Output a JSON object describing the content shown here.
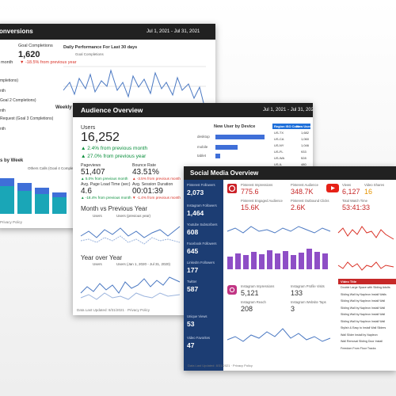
{
  "conversions": {
    "title": "onversions",
    "date": "Jul 1, 2021 - Jul 31, 2021",
    "goal_label": "Goal Completions",
    "goal_value": "1,620",
    "month": "month",
    "goal_change": "▼ -18.5% from previous year",
    "chart_title": "Daily Performance For Last 30 days",
    "chart_legend": "Goal Completions",
    "side": [
      "mpletions)",
      "nth",
      "Goal 2 Completions)",
      "nth",
      "Request (Goal 3 Completions)",
      "nth"
    ],
    "weekly": "Weekly",
    "by_week": "s by Week",
    "legend": "Others Calls (Goal 4 Completions)",
    "footer": "Privacy Policy"
  },
  "audience": {
    "title": "Audience Overview",
    "date": "Jul 1, 2021 - Jul 31, 2021",
    "users_label": "Users",
    "users": "16,252",
    "users_month": "▲ 2.4% from previous month",
    "users_year": "▲ 27.0% from previous year",
    "metrics": [
      {
        "label": "Pageviews",
        "value": "51,407",
        "change": "▲ 5.0% from previous month"
      },
      {
        "label": "Bounce Rate",
        "value": "43.51%",
        "change": "▲ -3.5% from previous month"
      },
      {
        "label": "Avg. Page Load Time (sec)",
        "value": "4.6",
        "change": "▲ -18.4% from previous month"
      },
      {
        "label": "Avg. Session Duration",
        "value": "00:01:39",
        "change": "▼ -1.4% from previous month"
      }
    ],
    "mvp_title": "Month vs Previous Year",
    "mvp_legend": [
      "Users",
      "Users (previous year)"
    ],
    "yoy_title": "Year over Year",
    "yoy_legend": [
      "Users",
      "Users (Jan 1, 2020 - Jul 31, 2020)"
    ],
    "device_title": "New User by Device",
    "devices": [
      "desktop",
      "mobile",
      "tablet"
    ],
    "table": {
      "header": [
        "Region ISO Code",
        "New Users"
      ],
      "rows": [
        [
          "US-TX",
          "1,682"
        ],
        [
          "US-CA",
          "1,060"
        ],
        [
          "US-NY",
          "1,046"
        ],
        [
          "US-FL",
          "933"
        ],
        [
          "US-WA",
          "528"
        ],
        [
          "US-IL",
          "480"
        ]
      ]
    },
    "footer": "Data Last Updated: 8/31/2021 · Privacy Policy"
  },
  "social": {
    "title": "Social Media Overview",
    "sidebar": [
      {
        "label": "Pinterest Followers",
        "value": "2,073"
      },
      {
        "label": "Instagram Followers",
        "value": "1,464"
      },
      {
        "label": "Youtube Subscribers",
        "value": "608"
      },
      {
        "label": "Facebook Followers",
        "value": "645"
      },
      {
        "label": "LinkedIn Followers",
        "value": "177"
      },
      {
        "label": "Twitter",
        "value": "587"
      },
      {
        "label": "Unique Views",
        "value": "53"
      },
      {
        "label": "Video Favorites",
        "value": "47"
      }
    ],
    "pinterest": [
      {
        "label": "Pinterest Impressions",
        "value": "775.6"
      },
      {
        "label": "Pinterest Audience",
        "value": "348.7K"
      },
      {
        "label": "Pinterest Engaged Audience",
        "value": "15.6K"
      },
      {
        "label": "Pinterest Outbound Clicks",
        "value": "2.6K"
      }
    ],
    "youtube": [
      {
        "label": "Views",
        "value": "6,127"
      },
      {
        "label": "Video Shares",
        "value": "16"
      },
      {
        "label": "Total Watch Time",
        "value": "53:41:33"
      }
    ],
    "instagram": [
      {
        "label": "Instagram Impressions",
        "value": "5,121"
      },
      {
        "label": "Instagram Profile Visits",
        "value": "133"
      },
      {
        "label": "Instagram Reach",
        "value": "208"
      },
      {
        "label": "Instagram Website Taps",
        "value": "3"
      }
    ],
    "table_header": "Video Title",
    "videos": [
      "Double Large Space with Sliding Adults",
      "Sliding Wall by Napleon Install Walls",
      "Sliding Wall by Napleon Install Wall",
      "Sliding Wall by Napleon Install Wall",
      "Sliding Wall by Napleon Install Wall",
      "Sliding Wall by Napleon Install Wall",
      "Stylish & Easy to Install Wall Sliders",
      "Wall Slider Install by Napleon",
      "Wall Removal Sliding Door Install",
      "Freedom From Floor Tracks"
    ],
    "footer": "Data Last Updated: 8/31/2021 · Privacy Policy"
  }
}
